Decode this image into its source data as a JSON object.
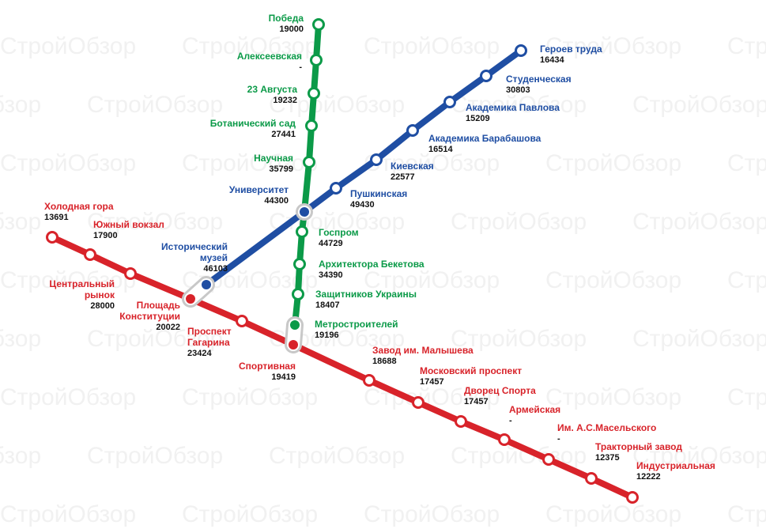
{
  "watermark": "СтройОбзор",
  "lines": [
    {
      "color": "#0b9a48",
      "stations": [
        {
          "name": [
            "Победа"
          ],
          "value": 19000
        },
        {
          "name": [
            "Алексеевская"
          ],
          "value": "-"
        },
        {
          "name": [
            "23 Августа"
          ],
          "value": 19232
        },
        {
          "name": [
            "Ботанический сад"
          ],
          "value": 27441
        },
        {
          "name": [
            "Научная"
          ],
          "value": 35799
        },
        {
          "name": [
            "Госпром"
          ],
          "value": 44729
        },
        {
          "name": [
            "Архитектора Бекетова"
          ],
          "value": 34390
        },
        {
          "name": [
            "Защитников Украины"
          ],
          "value": 18407
        },
        {
          "name": [
            "Метростроителей"
          ],
          "value": 19196
        }
      ]
    },
    {
      "color": "#1f4ea3",
      "stations": [
        {
          "name": [
            "Героев труда"
          ],
          "value": 16434
        },
        {
          "name": [
            "Студенческая"
          ],
          "value": 30803
        },
        {
          "name": [
            "Академика Павлова"
          ],
          "value": 15209
        },
        {
          "name": [
            "Академика Барабашова"
          ],
          "value": 16514
        },
        {
          "name": [
            "Киевская"
          ],
          "value": 22577
        },
        {
          "name": [
            "Пушкинская"
          ],
          "value": 49430
        },
        {
          "name": [
            "Университет"
          ],
          "value": 44300
        },
        {
          "name": [
            "Исторический",
            "музей"
          ],
          "value": 46103
        }
      ]
    },
    {
      "color": "#d8232a",
      "stations": [
        {
          "name": [
            "Холодная гора"
          ],
          "value": 13691
        },
        {
          "name": [
            "Южный вокзал"
          ],
          "value": 17900
        },
        {
          "name": [
            "Центральный",
            "рынок"
          ],
          "value": 28000
        },
        {
          "name": [
            "Площадь",
            "Конституции"
          ],
          "value": 20022
        },
        {
          "name": [
            "Проспект",
            "Гагарина"
          ],
          "value": 23424
        },
        {
          "name": [
            "Спортивная"
          ],
          "value": 19419
        },
        {
          "name": [
            "Завод им. Малышева"
          ],
          "value": 18688
        },
        {
          "name": [
            "Московский проспект"
          ],
          "value": 17457
        },
        {
          "name": [
            "Дворец Спорта"
          ],
          "value": 17457
        },
        {
          "name": [
            "Армейская"
          ],
          "value": "-"
        },
        {
          "name": [
            "Им. А.С.Масельского"
          ],
          "value": "-"
        },
        {
          "name": [
            "Тракторный завод"
          ],
          "value": 12375
        },
        {
          "name": [
            "Индустриальная"
          ],
          "value": 12222
        }
      ]
    }
  ]
}
